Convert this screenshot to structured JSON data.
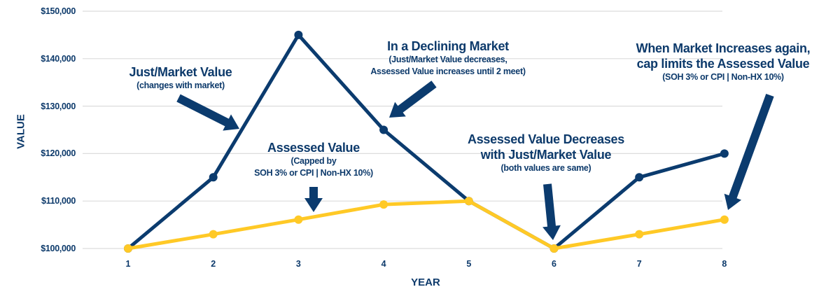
{
  "chart_data": {
    "type": "line",
    "title": "",
    "xlabel": "YEAR",
    "ylabel": "VALUE",
    "x": [
      1,
      2,
      3,
      4,
      5,
      6,
      7,
      8
    ],
    "x_tick_labels": [
      "1",
      "2",
      "3",
      "4",
      "5",
      "6",
      "7",
      "8"
    ],
    "ylim": [
      100000,
      150000
    ],
    "y_ticks": [
      100000,
      110000,
      120000,
      130000,
      140000,
      150000
    ],
    "y_tick_labels": [
      "$100,000",
      "$110,000",
      "$120,000",
      "$130,000",
      "$140,000",
      "$150,000"
    ],
    "grid": true,
    "series": [
      {
        "name": "Just/Market Value",
        "color": "#0b3b6e",
        "values": [
          100000,
          115000,
          145000,
          125000,
          110000,
          100000,
          115000,
          120000
        ]
      },
      {
        "name": "Assessed Value",
        "color": "#ffc926",
        "values": [
          100000,
          103000,
          106090,
          109273,
          110000,
          100000,
          103000,
          106090
        ]
      }
    ],
    "annotations": [
      {
        "id": "just",
        "lines": [
          "Just/Market Value",
          "(changes with market)"
        ]
      },
      {
        "id": "declining",
        "lines": [
          "In a Declining Market",
          "(Just/Market Value decreases,",
          "Assessed Value increases until 2 meet)"
        ]
      },
      {
        "id": "assessed",
        "lines": [
          "Assessed Value",
          "(Capped by",
          "SOH 3% or CPI | Non-HX 10%)"
        ]
      },
      {
        "id": "decreases",
        "lines": [
          "Assessed Value Decreases",
          "with Just/Market Value",
          "(both values are same)"
        ]
      },
      {
        "id": "increases",
        "lines": [
          "When Market Increases again,",
          "cap limits the Assessed Value",
          "(SOH 3% or CPI | Non-HX 10%)"
        ]
      }
    ]
  }
}
